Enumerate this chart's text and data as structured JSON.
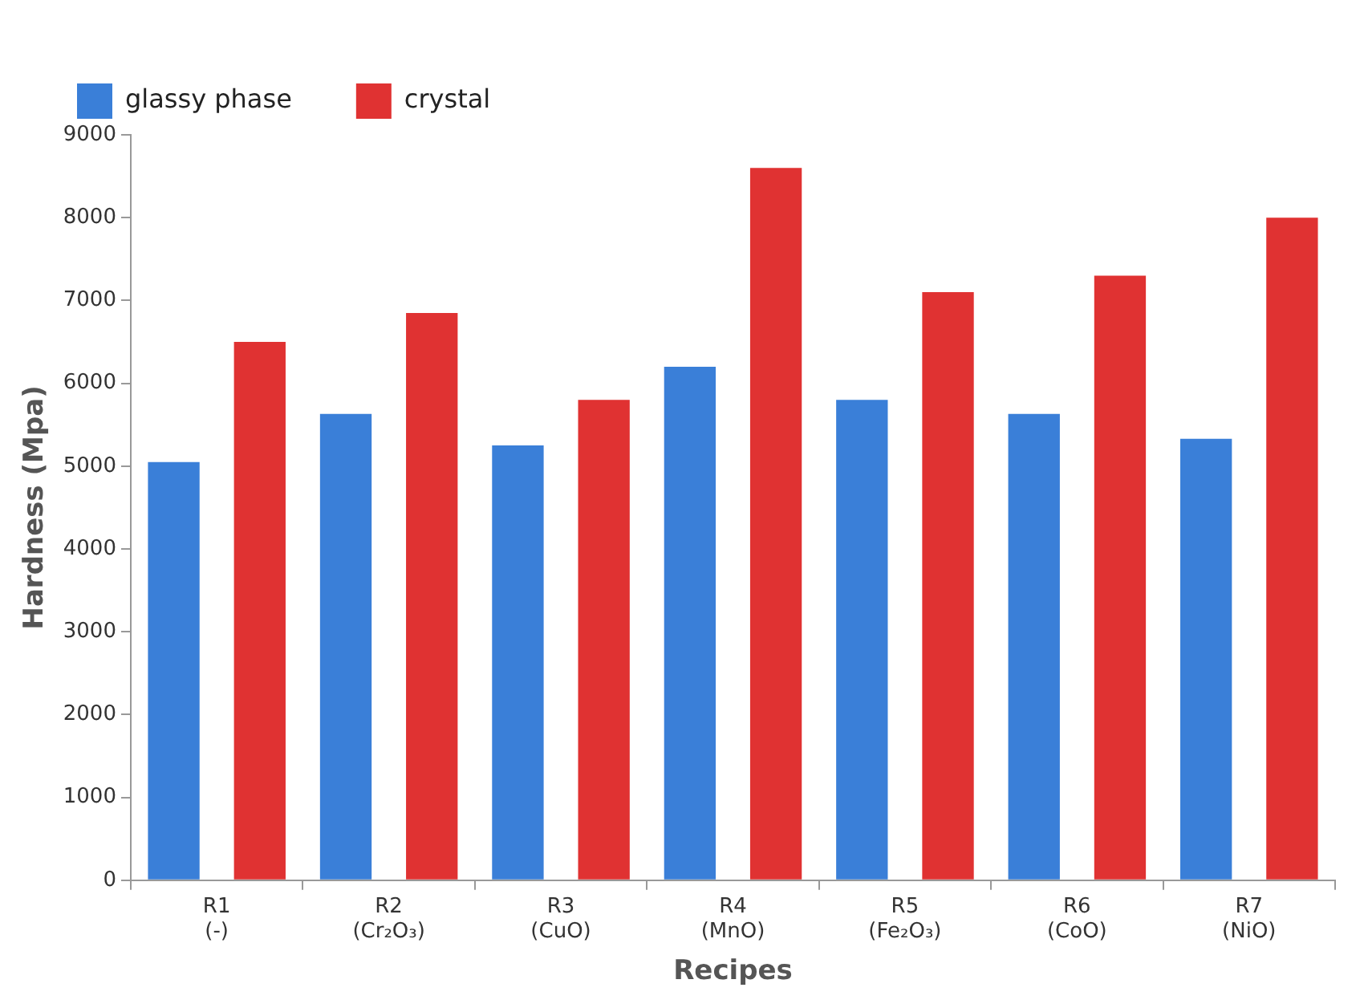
{
  "chart_data": {
    "type": "bar",
    "xlabel": "Recipes",
    "ylabel": "Hardness (Mpa)",
    "categories": [
      "R1\n(-)",
      "R2\n(Cr₂O₃)",
      "R3\n(CuO)",
      "R4\n(MnO)",
      "R5\n(Fe₂O₃)",
      "R6\n(CoO)",
      "R7\n(NiO)"
    ],
    "series": [
      {
        "name": "glassy phase",
        "color": "#3a7fd8",
        "values": [
          5050,
          5630,
          5250,
          6200,
          5800,
          5630,
          5330
        ]
      },
      {
        "name": "crystal",
        "color": "#e03232",
        "values": [
          6500,
          6850,
          5800,
          8600,
          7100,
          7300,
          8000
        ]
      }
    ],
    "ylim": [
      0,
      9000
    ],
    "yticks": [
      0,
      1000,
      2000,
      3000,
      4000,
      5000,
      6000,
      7000,
      8000,
      9000
    ],
    "grid": false,
    "legend": "top left"
  }
}
